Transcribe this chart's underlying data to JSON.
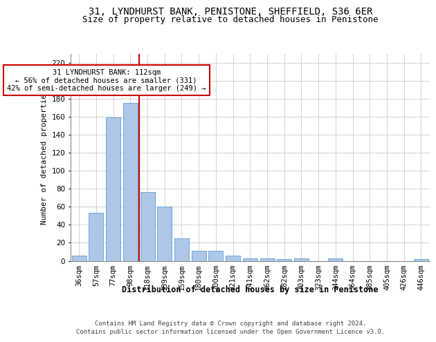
{
  "title1": "31, LYNDHURST BANK, PENISTONE, SHEFFIELD, S36 6ER",
  "title2": "Size of property relative to detached houses in Penistone",
  "xlabel": "Distribution of detached houses by size in Penistone",
  "ylabel": "Number of detached properties",
  "categories": [
    "36sqm",
    "57sqm",
    "77sqm",
    "98sqm",
    "118sqm",
    "139sqm",
    "159sqm",
    "180sqm",
    "200sqm",
    "221sqm",
    "241sqm",
    "262sqm",
    "282sqm",
    "303sqm",
    "323sqm",
    "344sqm",
    "364sqm",
    "385sqm",
    "405sqm",
    "426sqm",
    "446sqm"
  ],
  "values": [
    6,
    53,
    159,
    175,
    76,
    60,
    25,
    11,
    11,
    6,
    3,
    3,
    2,
    3,
    0,
    3,
    0,
    0,
    0,
    0,
    2
  ],
  "bar_color": "#aec6e8",
  "bar_edge_color": "#5a9fd4",
  "vline_color": "#cc0000",
  "annotation_line1": "31 LYNDHURST BANK: 112sqm",
  "annotation_line2": "← 56% of detached houses are smaller (331)",
  "annotation_line3": "42% of semi-detached houses are larger (249) →",
  "footer1": "Contains HM Land Registry data © Crown copyright and database right 2024.",
  "footer2": "Contains public sector information licensed under the Open Government Licence v3.0.",
  "ylim": [
    0,
    230
  ],
  "yticks": [
    0,
    20,
    40,
    60,
    80,
    100,
    120,
    140,
    160,
    180,
    200,
    220
  ],
  "grid_color": "#cccccc",
  "title1_fontsize": 10,
  "title2_fontsize": 9,
  "ylabel_fontsize": 8,
  "tick_fontsize": 7.5,
  "annot_fontsize": 7.5,
  "xlabel_fontsize": 8.5,
  "footer_fontsize": 6.5
}
